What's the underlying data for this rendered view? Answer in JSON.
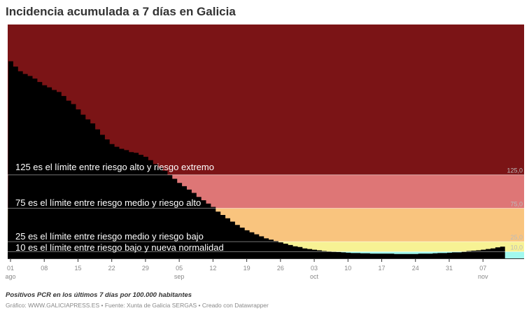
{
  "header": {
    "title": "Incidencia acumulada a 7 días en Galicia"
  },
  "footer": {
    "description": "Positivos PCR en los últimos 7 días por 100.000 habitantes",
    "source": "Gráfico: WWW.GALICIAPRESS.ES • Fuente: Xunta de Galicia SERGAS • Creado con Datawrapper"
  },
  "chart_data": {
    "type": "area",
    "title": "Incidencia acumulada a 7 días en Galicia",
    "subtitle": "Positivos PCR en los últimos 7 días por 100.000 habitantes",
    "xlabel": "",
    "ylabel": "",
    "ylim": [
      0,
      350
    ],
    "grid": false,
    "legend": "none",
    "x_start": "2020-08-01",
    "x_end": "2020-11-11",
    "x_ticks": [
      {
        "day": "01",
        "month": "ago"
      },
      {
        "day": "08",
        "month": ""
      },
      {
        "day": "15",
        "month": ""
      },
      {
        "day": "22",
        "month": ""
      },
      {
        "day": "29",
        "month": ""
      },
      {
        "day": "05",
        "month": "sep"
      },
      {
        "day": "12",
        "month": ""
      },
      {
        "day": "19",
        "month": ""
      },
      {
        "day": "26",
        "month": ""
      },
      {
        "day": "03",
        "month": "oct"
      },
      {
        "day": "10",
        "month": ""
      },
      {
        "day": "17",
        "month": ""
      },
      {
        "day": "24",
        "month": ""
      },
      {
        "day": "31",
        "month": ""
      },
      {
        "day": "07",
        "month": "nov"
      }
    ],
    "thresholds": [
      {
        "value": 125,
        "label": "125,0",
        "band_color": "#7b1416",
        "annotation": "125 es el límite entre riesgo alto y riesgo extremo"
      },
      {
        "value": 75,
        "label": "75,0",
        "band_color": "#de7676",
        "annotation": "75 es el límite entre riesgo medio y riesgo alto"
      },
      {
        "value": 25,
        "label": "25,0",
        "band_color": "#f9c47e",
        "annotation": "25 es el límite entre riesgo medio y riesgo bajo"
      },
      {
        "value": 10,
        "label": "10,0",
        "band_color": "#f7f294",
        "annotation": "10 es el límite entre riesgo bajo y nueva normalidad"
      },
      {
        "value": 0,
        "label": "",
        "band_color": "#a2f9ee",
        "annotation": ""
      }
    ],
    "series": [
      {
        "name": "Incidencia acumulada 7 días",
        "color": "#000000",
        "values": [
          295,
          287,
          280,
          276,
          273,
          269,
          264,
          259,
          256,
          252,
          249,
          243,
          236,
          231,
          223,
          215,
          208,
          202,
          193,
          185,
          178,
          171,
          167,
          164,
          162,
          159,
          158,
          155,
          152,
          147,
          141,
          136,
          131,
          125,
          119,
          113,
          108,
          103,
          98,
          92,
          87,
          82,
          77,
          70,
          65,
          60,
          55,
          50,
          46,
          42,
          39,
          36,
          33,
          30,
          28,
          26,
          24,
          22,
          20,
          18,
          17,
          15,
          14,
          13,
          12,
          11,
          10.5,
          10,
          9.5,
          9,
          8.5,
          8,
          8,
          7.5,
          7.5,
          7,
          7,
          7,
          7,
          7,
          6.5,
          6.5,
          6.5,
          6.5,
          6.5,
          7,
          7,
          7,
          7.5,
          8,
          8,
          8.5,
          9,
          9,
          10,
          11,
          11.5,
          12,
          13,
          14,
          15,
          16.5,
          17.5
        ]
      }
    ]
  }
}
